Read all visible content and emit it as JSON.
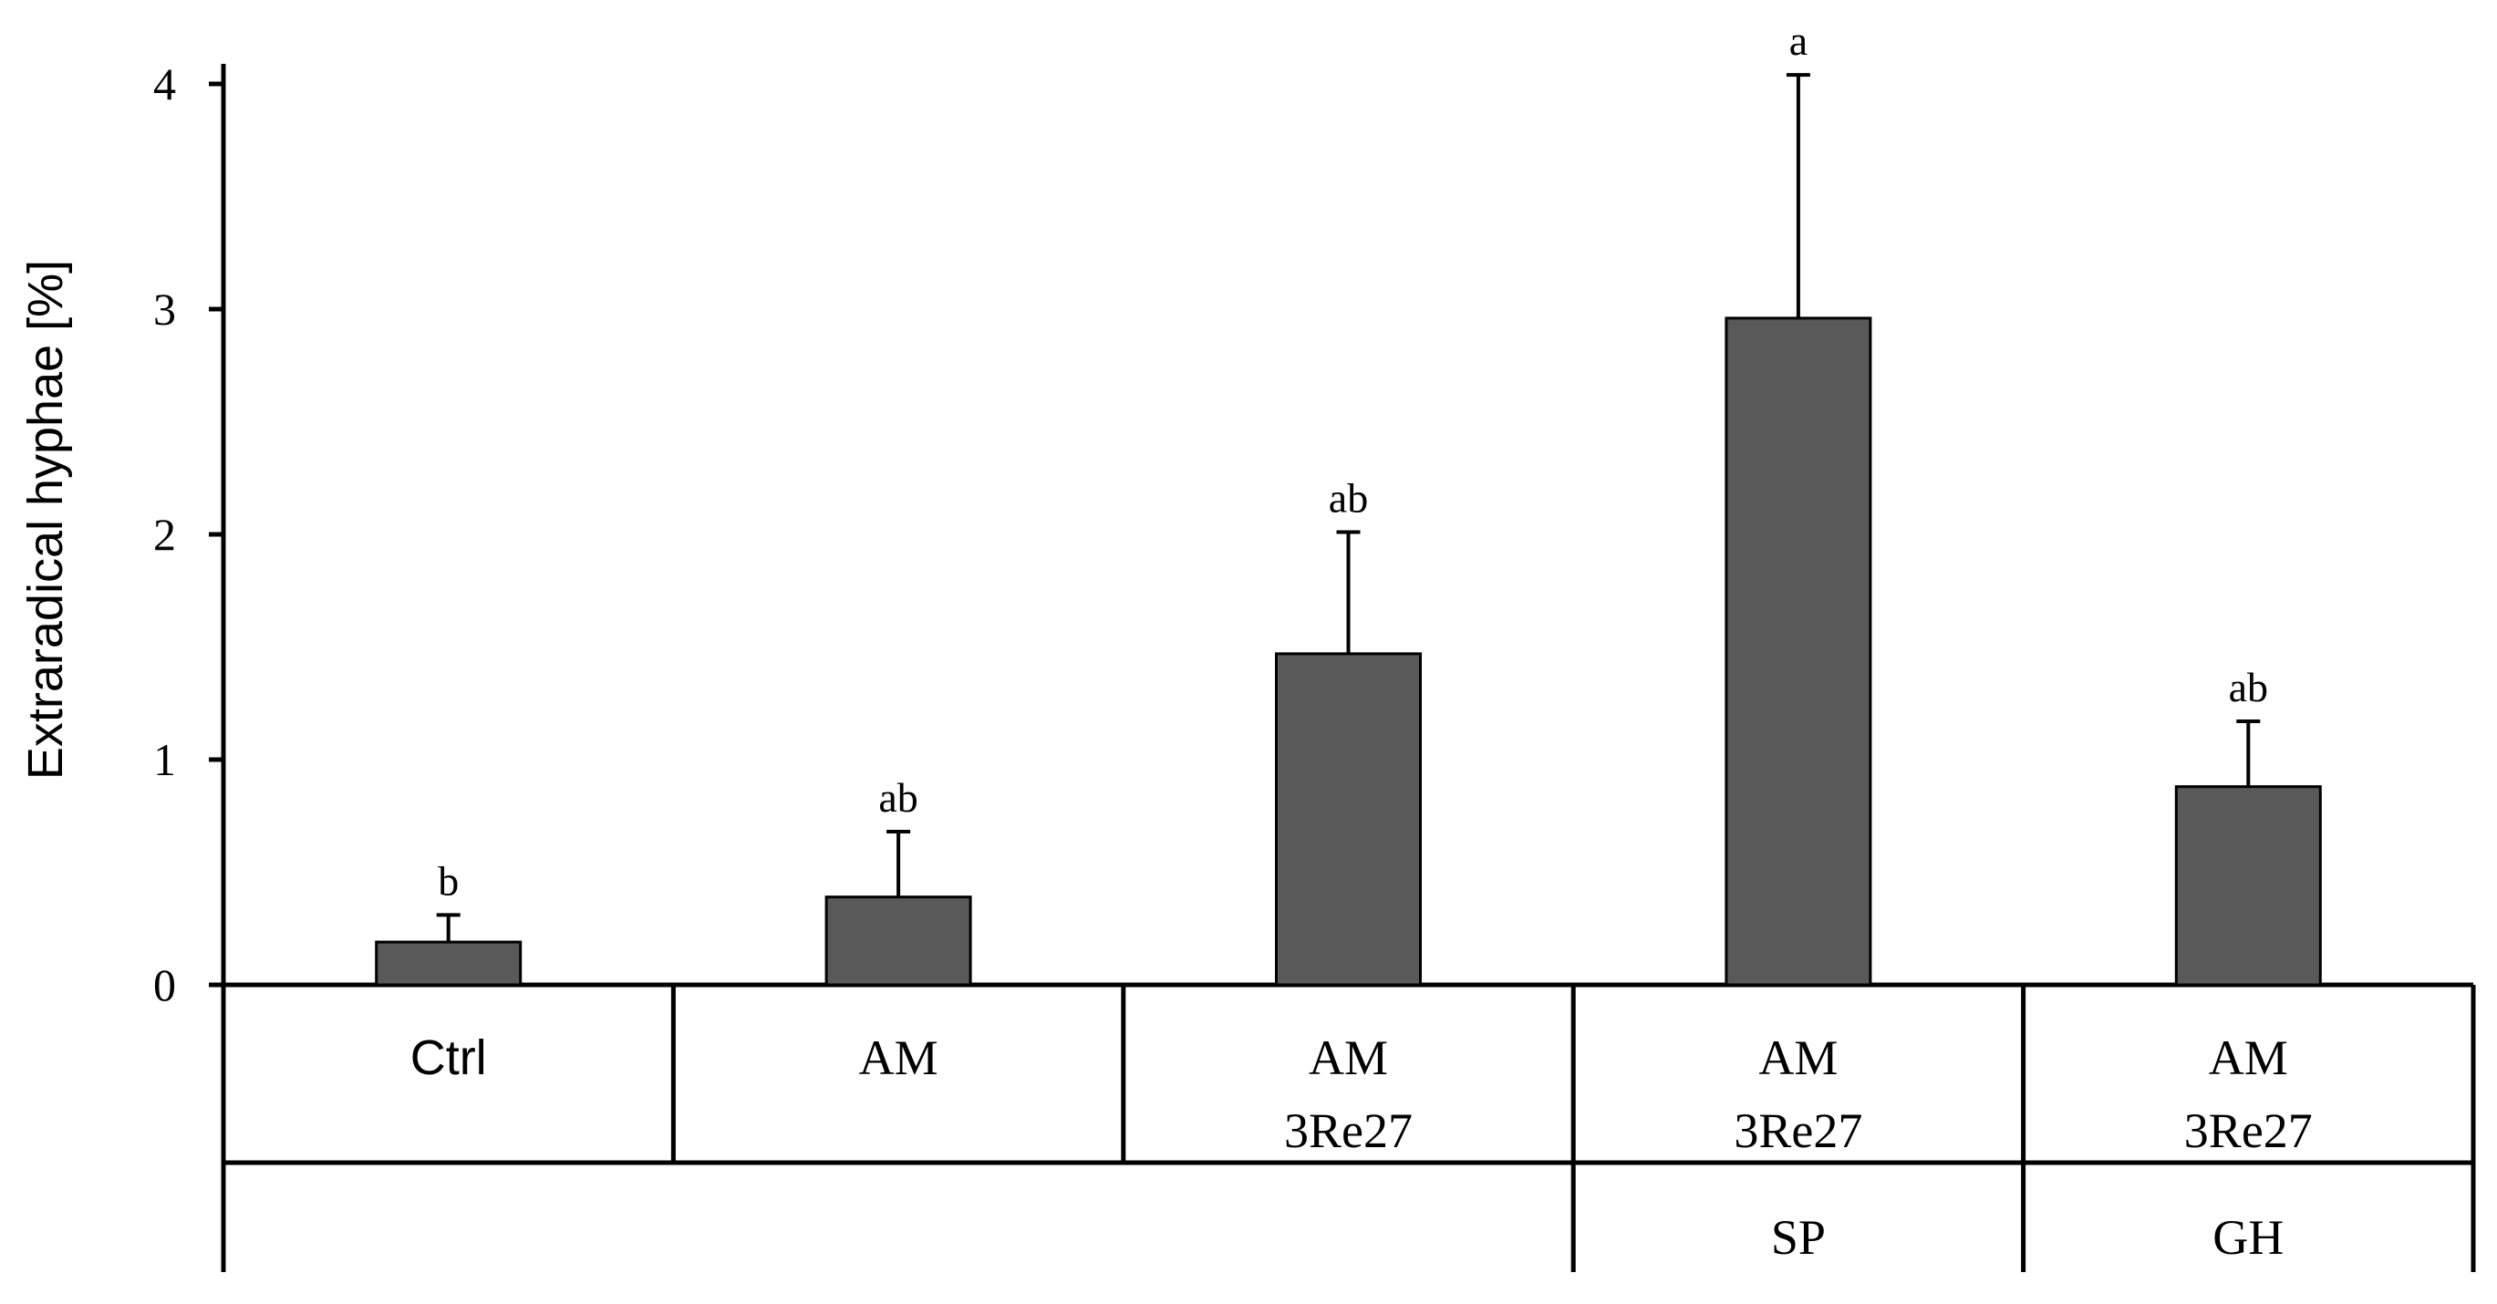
{
  "chart_data": {
    "type": "bar",
    "ylabel": "Extraradical hyphae [%]",
    "ylim": [
      0,
      4
    ],
    "yticks": [
      0,
      1,
      2,
      3,
      4
    ],
    "grid": false,
    "categories": [
      {
        "lines": [
          "Ctrl"
        ],
        "group_label": ""
      },
      {
        "lines": [
          "AM"
        ],
        "group_label": ""
      },
      {
        "lines": [
          "AM",
          "3Re27"
        ],
        "group_label": ""
      },
      {
        "lines": [
          "AM",
          "3Re27"
        ],
        "group_label": "SP"
      },
      {
        "lines": [
          "AM",
          "3Re27"
        ],
        "group_label": "GH"
      }
    ],
    "values": [
      0.19,
      0.39,
      1.47,
      2.96,
      0.88
    ],
    "errors": [
      0.12,
      0.29,
      0.54,
      1.08,
      0.29
    ],
    "significance": [
      "b",
      "ab",
      "ab",
      "a",
      "ab"
    ],
    "bar_color": "#595959"
  }
}
